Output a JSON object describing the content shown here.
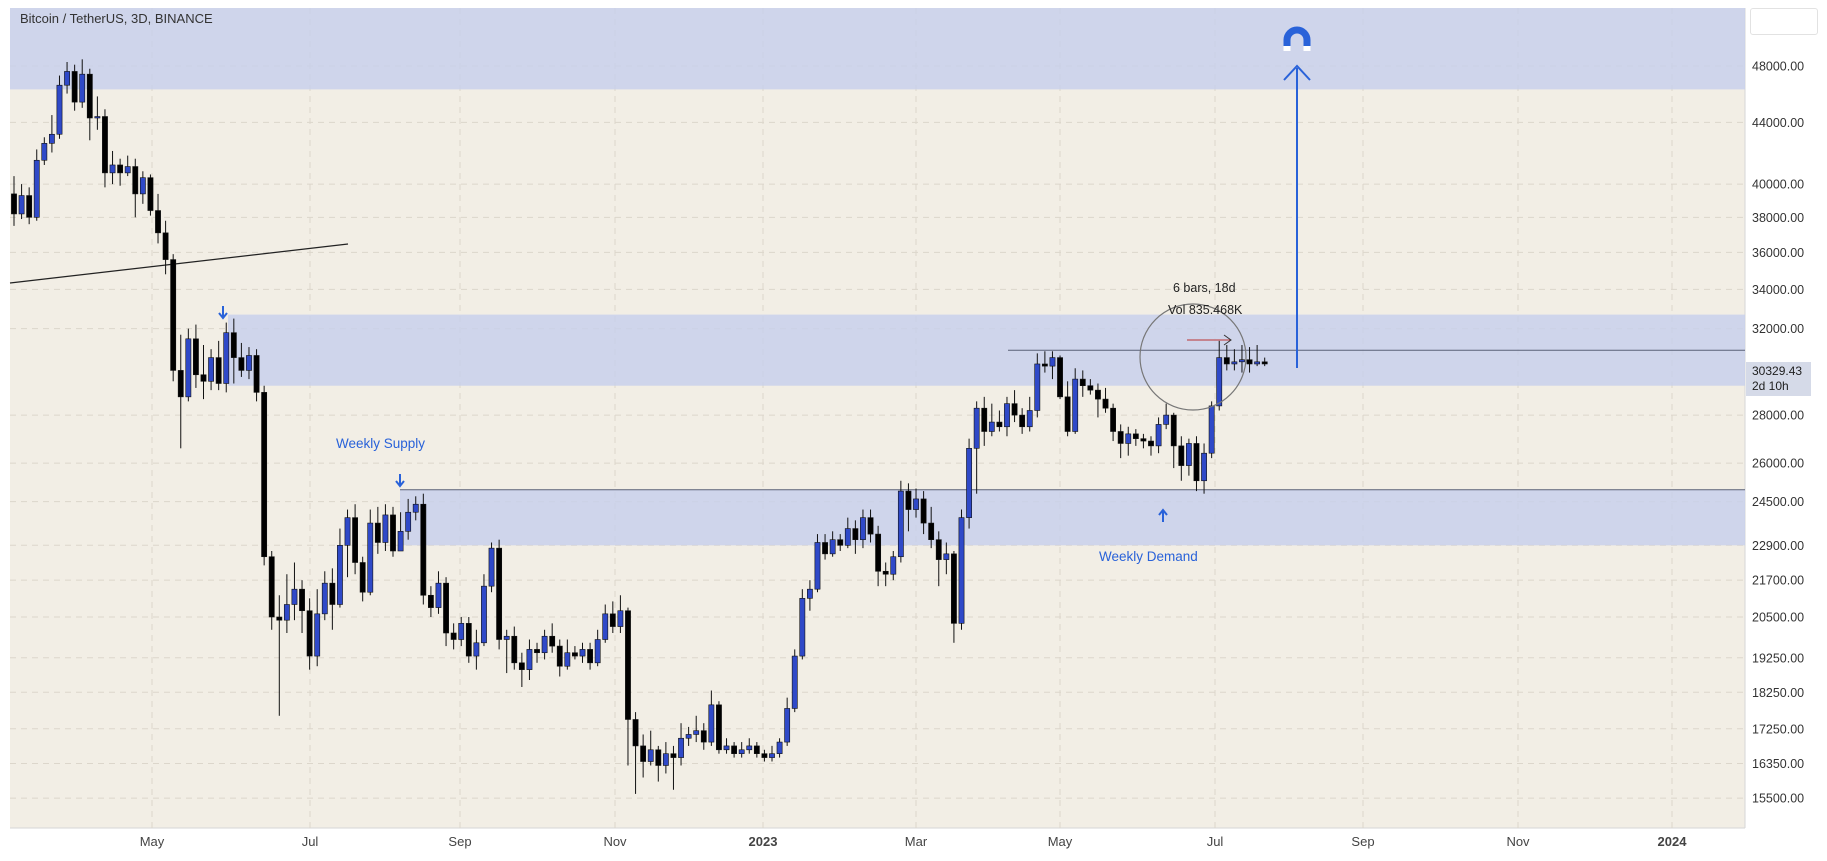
{
  "header": {
    "symbol_title": "Bitcoin / TetherUS, 3D, BINANCE"
  },
  "colors": {
    "background": "#f2eee5",
    "up_candle": "#2f49c8",
    "down_candle": "#000000",
    "zone": "#c7d0ec",
    "annotation_blue": "#2962d9"
  },
  "annotations": {
    "measure_bars": "6 bars, 18d",
    "measure_vol": "Vol 835.468K",
    "weekly_supply": "Weekly Supply",
    "weekly_demand": "Weekly Demand",
    "target_icon": "magnet-icon"
  },
  "last_price": {
    "value": "30329.43",
    "countdown": "2d 10h"
  },
  "chart_data": {
    "type": "candlestick",
    "title": "Bitcoin / TetherUS, 3D, BINANCE",
    "y_scale": "log",
    "ylim": [
      14800,
      52500
    ],
    "y_ticks": [
      "48000.00",
      "44000.00",
      "40000.00",
      "38000.00",
      "36000.00",
      "34000.00",
      "32000.00",
      "28000.00",
      "26000.00",
      "24500.00",
      "22900.00",
      "21700.00",
      "20500.00",
      "19250.00",
      "18250.00",
      "17250.00",
      "16350.00",
      "15500.00"
    ],
    "x_labels": [
      "May",
      "Jul",
      "Sep",
      "Nov",
      "2023",
      "Mar",
      "May",
      "Jul",
      "Sep",
      "Nov",
      "2024"
    ],
    "candles": [
      [
        39400,
        38200,
        40500,
        37500
      ],
      [
        38200,
        39300,
        40000,
        37900
      ],
      [
        39300,
        38000,
        39800,
        37600
      ],
      [
        38000,
        41500,
        42200,
        37800
      ],
      [
        41500,
        42600,
        43000,
        41200
      ],
      [
        42600,
        43200,
        44500,
        42000
      ],
      [
        43200,
        46600,
        47300,
        42900
      ],
      [
        46600,
        47600,
        48300,
        46000
      ],
      [
        47600,
        45400,
        48100,
        44800
      ],
      [
        45400,
        47400,
        48500,
        45000
      ],
      [
        47400,
        44300,
        47800,
        42800
      ],
      [
        44300,
        44400,
        45800,
        43500
      ],
      [
        44400,
        40700,
        44900,
        39800
      ],
      [
        40700,
        41200,
        42100,
        40000
      ],
      [
        41200,
        40700,
        41600,
        39900
      ],
      [
        40700,
        41100,
        41800,
        40500
      ],
      [
        41100,
        39400,
        41600,
        38000
      ],
      [
        39400,
        40400,
        40800,
        38800
      ],
      [
        40400,
        38400,
        40600,
        38100
      ],
      [
        38400,
        37100,
        39400,
        36500
      ],
      [
        37100,
        35600,
        37800,
        34800
      ],
      [
        35600,
        30000,
        35900,
        29500
      ],
      [
        30000,
        28800,
        31700,
        26600
      ],
      [
        28800,
        31500,
        32000,
        28600
      ],
      [
        31500,
        29800,
        32200,
        29200
      ],
      [
        29800,
        29500,
        31200,
        28700
      ],
      [
        29500,
        30600,
        31000,
        29100
      ],
      [
        30600,
        29400,
        31400,
        29100
      ],
      [
        29400,
        31800,
        32300,
        29000
      ],
      [
        31800,
        30600,
        32500,
        29400
      ],
      [
        30600,
        30000,
        31300,
        29700
      ],
      [
        30000,
        30700,
        31100,
        29600
      ],
      [
        30700,
        29000,
        31000,
        28600
      ],
      [
        29000,
        22500,
        29300,
        22200
      ],
      [
        22500,
        20500,
        22700,
        20100
      ],
      [
        20500,
        20400,
        21200,
        17600
      ],
      [
        20400,
        20900,
        21900,
        20000
      ],
      [
        20900,
        21400,
        22300,
        20400
      ],
      [
        21400,
        20700,
        21700,
        20000
      ],
      [
        20700,
        19300,
        21100,
        18900
      ],
      [
        19300,
        20600,
        21400,
        19000
      ],
      [
        20600,
        21600,
        22000,
        20400
      ],
      [
        21600,
        20900,
        22100,
        20100
      ],
      [
        20900,
        22900,
        23500,
        20800
      ],
      [
        22900,
        23900,
        24200,
        21800
      ],
      [
        23900,
        22300,
        24400,
        21900
      ],
      [
        22300,
        21300,
        22500,
        21000
      ],
      [
        21300,
        23700,
        24200,
        21200
      ],
      [
        23700,
        23000,
        24300,
        22600
      ],
      [
        23000,
        24000,
        24400,
        22700
      ],
      [
        24000,
        22700,
        24300,
        22500
      ],
      [
        22700,
        23400,
        24100,
        22800
      ],
      [
        23400,
        24100,
        24600,
        23100
      ],
      [
        24100,
        24400,
        24700,
        23800
      ],
      [
        24400,
        21200,
        24800,
        20900
      ],
      [
        21200,
        20800,
        21500,
        20500
      ],
      [
        20800,
        21600,
        22000,
        20600
      ],
      [
        21600,
        20000,
        21800,
        19600
      ],
      [
        20000,
        19800,
        20300,
        19500
      ],
      [
        19800,
        20300,
        20500,
        19600
      ],
      [
        20300,
        19300,
        20500,
        19100
      ],
      [
        19300,
        19700,
        20100,
        18900
      ],
      [
        19700,
        21500,
        21900,
        19600
      ],
      [
        21500,
        22800,
        23000,
        21300
      ],
      [
        22800,
        19800,
        23100,
        19500
      ],
      [
        19800,
        19900,
        20100,
        18800
      ],
      [
        19900,
        19100,
        20200,
        18900
      ],
      [
        19100,
        18900,
        19400,
        18400
      ],
      [
        18900,
        19500,
        19800,
        18600
      ],
      [
        19500,
        19400,
        19700,
        19100
      ],
      [
        19400,
        19900,
        20100,
        19200
      ],
      [
        19900,
        19600,
        20300,
        19400
      ],
      [
        19600,
        19000,
        19800,
        18700
      ],
      [
        19000,
        19400,
        19800,
        18900
      ],
      [
        19400,
        19300,
        19600,
        19200
      ],
      [
        19300,
        19500,
        19700,
        19100
      ],
      [
        19500,
        19100,
        19700,
        18900
      ],
      [
        19100,
        19800,
        20100,
        19000
      ],
      [
        19800,
        20600,
        20900,
        19700
      ],
      [
        20600,
        20200,
        21000,
        20000
      ],
      [
        20200,
        20700,
        21200,
        20000
      ],
      [
        20700,
        17500,
        20800,
        16300
      ],
      [
        17500,
        16800,
        17700,
        15600
      ],
      [
        16800,
        16400,
        17100,
        16000
      ],
      [
        16400,
        16700,
        17200,
        16300
      ],
      [
        16700,
        16300,
        16800,
        15900
      ],
      [
        16300,
        16600,
        16900,
        16100
      ],
      [
        16600,
        16500,
        16800,
        15700
      ],
      [
        16500,
        17000,
        17400,
        16300
      ],
      [
        17000,
        17100,
        17300,
        16800
      ],
      [
        17100,
        17200,
        17600,
        16900
      ],
      [
        17200,
        16900,
        17400,
        16700
      ],
      [
        16900,
        17900,
        18300,
        16800
      ],
      [
        17900,
        16700,
        18000,
        16600
      ],
      [
        16700,
        16800,
        17000,
        16600
      ],
      [
        16800,
        16600,
        16900,
        16500
      ],
      [
        16600,
        16700,
        16900,
        16500
      ],
      [
        16700,
        16800,
        17000,
        16600
      ],
      [
        16800,
        16600,
        16900,
        16500
      ],
      [
        16600,
        16500,
        16700,
        16400
      ],
      [
        16500,
        16600,
        16800,
        16400
      ],
      [
        16600,
        16900,
        17000,
        16500
      ],
      [
        16900,
        17800,
        18100,
        16800
      ],
      [
        17800,
        19300,
        19500,
        17700
      ],
      [
        19300,
        21100,
        21400,
        19200
      ],
      [
        21100,
        21400,
        21700,
        20700
      ],
      [
        21400,
        23000,
        23300,
        21300
      ],
      [
        23000,
        22600,
        23300,
        22400
      ],
      [
        22600,
        23100,
        23400,
        22500
      ],
      [
        23100,
        22900,
        23300,
        22700
      ],
      [
        22900,
        23500,
        23900,
        22800
      ],
      [
        23500,
        23100,
        23800,
        22600
      ],
      [
        23100,
        23900,
        24200,
        22800
      ],
      [
        23900,
        23300,
        24200,
        23000
      ],
      [
        23300,
        22000,
        23600,
        21500
      ],
      [
        22000,
        21900,
        22300,
        21500
      ],
      [
        21900,
        22500,
        22700,
        21700
      ],
      [
        22500,
        24900,
        25300,
        22300
      ],
      [
        24900,
        24200,
        25200,
        23400
      ],
      [
        24200,
        24600,
        25000,
        23900
      ],
      [
        24600,
        23700,
        24900,
        23300
      ],
      [
        23700,
        23100,
        24300,
        22800
      ],
      [
        23100,
        22400,
        23400,
        21500
      ],
      [
        22400,
        22600,
        23000,
        21900
      ],
      [
        22600,
        20300,
        22700,
        19700
      ],
      [
        20300,
        23900,
        24200,
        20100
      ],
      [
        23900,
        26600,
        27000,
        23500
      ],
      [
        26600,
        28300,
        28600,
        24800
      ],
      [
        28300,
        27300,
        28800,
        26700
      ],
      [
        27300,
        27700,
        28500,
        27100
      ],
      [
        27700,
        27500,
        28200,
        27300
      ],
      [
        27500,
        28500,
        28800,
        27100
      ],
      [
        28500,
        28000,
        29100,
        27700
      ],
      [
        28000,
        27500,
        28300,
        27200
      ],
      [
        27500,
        28200,
        28800,
        27300
      ],
      [
        28200,
        30300,
        30800,
        27900
      ],
      [
        30300,
        30200,
        30900,
        29900
      ],
      [
        30200,
        30600,
        30900,
        29600
      ],
      [
        30600,
        28800,
        30700,
        28700
      ],
      [
        28800,
        27300,
        29500,
        27100
      ],
      [
        27300,
        29600,
        30100,
        27200
      ],
      [
        29600,
        29300,
        30000,
        28800
      ],
      [
        29300,
        29100,
        29600,
        28900
      ],
      [
        29100,
        28700,
        29400,
        27900
      ],
      [
        28700,
        28300,
        29200,
        28100
      ],
      [
        28300,
        27300,
        28500,
        26900
      ],
      [
        27300,
        26800,
        27600,
        26200
      ],
      [
        26800,
        27200,
        27500,
        26300
      ],
      [
        27200,
        27000,
        27400,
        26700
      ],
      [
        27000,
        26900,
        27200,
        26600
      ],
      [
        26900,
        26700,
        27100,
        26300
      ],
      [
        26700,
        27600,
        27900,
        26400
      ],
      [
        27600,
        28000,
        28500,
        27400
      ],
      [
        28000,
        26700,
        28100,
        25800
      ],
      [
        26700,
        25900,
        27100,
        25300
      ],
      [
        25900,
        26800,
        27000,
        25500
      ],
      [
        26800,
        25300,
        27100,
        24900
      ],
      [
        25300,
        26400,
        26800,
        24800
      ],
      [
        26400,
        28400,
        28600,
        26200
      ],
      [
        28400,
        30600,
        31400,
        28200
      ],
      [
        30600,
        30300,
        31200,
        30000
      ],
      [
        30300,
        30400,
        31000,
        30000
      ],
      [
        30400,
        30500,
        31200,
        29900
      ],
      [
        30500,
        30300,
        31100,
        29900
      ],
      [
        30300,
        30400,
        31200,
        30200
      ],
      [
        30400,
        30300,
        30600,
        30200
      ]
    ],
    "zones": [
      [
        46300,
        52500
      ],
      [
        29300,
        32700
      ],
      [
        22900,
        24950
      ]
    ],
    "annotations": [
      "6 bars, 18d",
      "Vol 835.468K",
      "Weekly Supply",
      "Weekly Demand"
    ]
  }
}
